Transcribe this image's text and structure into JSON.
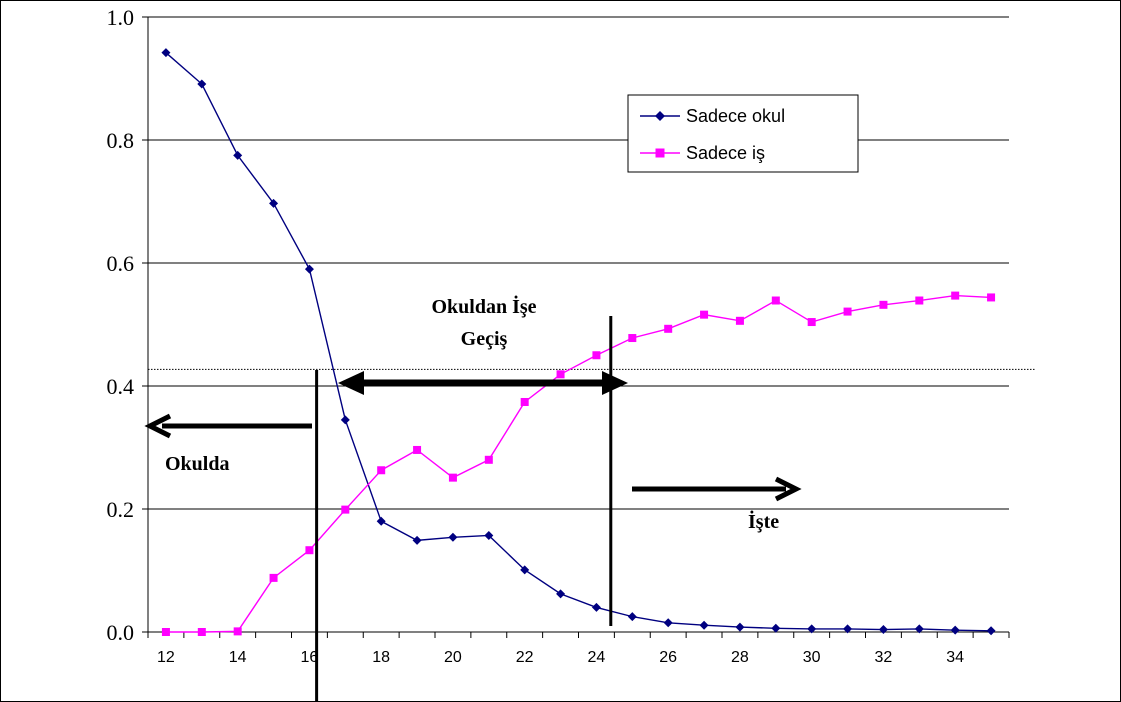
{
  "chart_data": {
    "type": "line",
    "x": [
      12,
      13,
      14,
      15,
      16,
      17,
      18,
      19,
      20,
      21,
      22,
      23,
      24,
      25,
      26,
      27,
      28,
      29,
      30,
      31,
      32,
      33,
      34,
      35
    ],
    "xticks": [
      "12",
      "14",
      "16",
      "18",
      "20",
      "22",
      "24",
      "26",
      "28",
      "30",
      "32",
      "34"
    ],
    "yticks": [
      "0.0",
      "0.2",
      "0.4",
      "0.6",
      "0.8",
      "1.0"
    ],
    "ylim": [
      0,
      1.0
    ],
    "xlim": [
      11.5,
      35.5
    ],
    "grid": true,
    "legend": "top-right",
    "title": "",
    "xlabel": "",
    "ylabel": "",
    "series": [
      {
        "name": "Sadece okul",
        "color": "#000080",
        "marker": "diamond",
        "values": [
          0.942,
          0.891,
          0.775,
          0.697,
          0.59,
          0.345,
          0.18,
          0.149,
          0.154,
          0.157,
          0.101,
          0.062,
          0.04,
          0.025,
          0.015,
          0.011,
          0.008,
          0.006,
          0.005,
          0.005,
          0.004,
          0.005,
          0.003,
          0.002
        ]
      },
      {
        "name": "Sadece iş",
        "color": "#ff00ff",
        "marker": "square",
        "values": [
          0.0,
          0.0,
          0.001,
          0.088,
          0.133,
          0.199,
          0.263,
          0.296,
          0.251,
          0.28,
          0.374,
          0.419,
          0.45,
          0.478,
          0.493,
          0.516,
          0.506,
          0.539,
          0.504,
          0.521,
          0.532,
          0.539,
          0.547,
          0.544
        ]
      }
    ],
    "annotations": {
      "transition_line1": "Okuldan İşe",
      "transition_line2": "Geçiş",
      "in_school": "Okulda",
      "at_work": "İşte"
    },
    "reference_line_y": 0.427,
    "divider_x": [
      16.2,
      24.4
    ]
  }
}
